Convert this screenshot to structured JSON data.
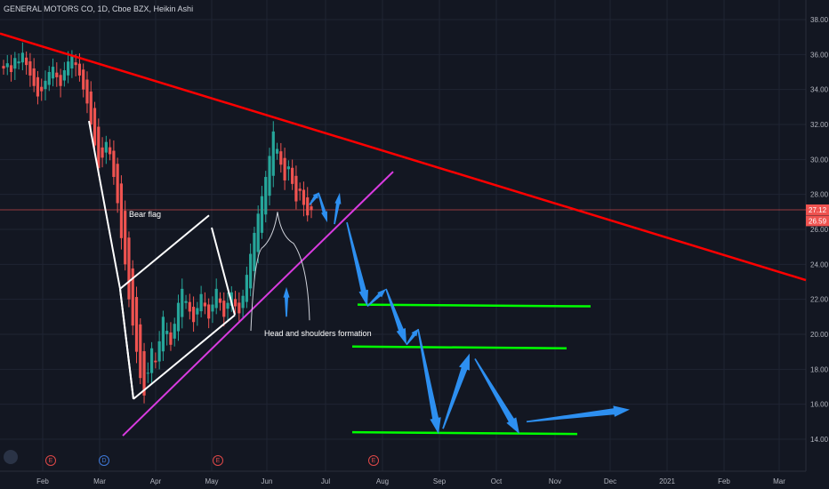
{
  "header": {
    "title": "GENERAL MOTORS CO, 1D, Cboe BZX, Heikin Ashi"
  },
  "colors": {
    "background": "#131722",
    "grid": "#1f2433",
    "up": "#26a69a",
    "down": "#ef5350",
    "trendline": "#ff0000",
    "support": "#d93be0",
    "flag": "#ffffff",
    "target_lines": "#00ff00",
    "arrows": "#2d8ff0",
    "price_line": "#ef5350"
  },
  "events": [
    {
      "type": "E",
      "x_label": "Feb"
    },
    {
      "type": "D",
      "x_label": "Mar"
    },
    {
      "type": "E",
      "x_label": "May"
    },
    {
      "type": "E",
      "x_label": "Aug"
    }
  ],
  "chart_data": {
    "type": "candlestick",
    "title": "GENERAL MOTORS CO, 1D, Cboe BZX, Heikin Ashi",
    "x_ticks": [
      "Feb",
      "Mar",
      "Apr",
      "May",
      "Jun",
      "Jul",
      "Aug",
      "Sep",
      "Oct",
      "Nov",
      "Dec",
      "2021",
      "Feb",
      "Mar"
    ],
    "y_ticks": [
      "38.00",
      "36.00",
      "34.00",
      "32.00",
      "30.00",
      "28.00",
      "26.00",
      "24.00",
      "22.00",
      "20.00",
      "18.00",
      "16.00",
      "14.00"
    ],
    "ylim": [
      12.6,
      39.2
    ],
    "price_labels": [
      {
        "value": 27.12,
        "text": "27.12"
      },
      {
        "value": 26.59,
        "text": "26.59"
      }
    ],
    "price_closes": [
      35.2,
      35.5,
      35.0,
      35.8,
      35.6,
      36.1,
      35.4,
      34.8,
      34.2,
      33.6,
      33.9,
      34.5,
      35.0,
      35.3,
      34.7,
      34.2,
      35.1,
      35.6,
      35.9,
      35.4,
      34.8,
      34.0,
      33.2,
      32.0,
      30.8,
      29.5,
      30.1,
      31.0,
      30.3,
      29.0,
      27.5,
      25.5,
      24.0,
      22.0,
      20.5,
      19.0,
      17.5,
      16.5,
      17.8,
      19.2,
      18.4,
      19.6,
      21.0,
      20.2,
      19.4,
      20.6,
      21.8,
      22.6,
      21.9,
      21.3,
      20.7,
      21.5,
      22.3,
      21.6,
      20.9,
      21.7,
      22.6,
      21.8,
      21.0,
      21.8,
      22.4,
      21.6,
      21.2,
      22.2,
      23.4,
      24.6,
      25.8,
      26.9,
      27.9,
      29.0,
      30.2,
      31.6,
      30.6,
      29.7,
      28.8,
      29.6,
      28.6,
      27.6,
      28.2,
      27.4,
      26.8,
      27.1
    ],
    "annotations": [
      {
        "text": "Bear flag"
      },
      {
        "text": "Head and shoulders formation"
      }
    ],
    "target_levels": [
      21.6,
      19.2,
      14.3
    ],
    "grid": true
  }
}
